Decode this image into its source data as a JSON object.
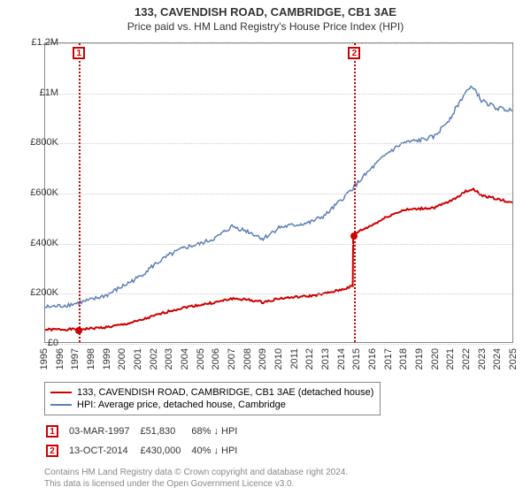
{
  "title": "133, CAVENDISH ROAD, CAMBRIDGE, CB1 3AE",
  "subtitle": "Price paid vs. HM Land Registry's House Price Index (HPI)",
  "chart": {
    "type": "line",
    "background_color": "#ffffff",
    "grid_color": "#cccccc",
    "border_color": "#888888",
    "ylim": [
      0,
      1200000
    ],
    "ytick_step": 200000,
    "yticks": [
      "£0",
      "£200K",
      "£400K",
      "£600K",
      "£800K",
      "£1M",
      "£1.2M"
    ],
    "xlim": [
      1995,
      2025
    ],
    "xticks": [
      "1995",
      "1996",
      "1997",
      "1998",
      "1999",
      "2000",
      "2001",
      "2002",
      "2003",
      "2004",
      "2005",
      "2006",
      "2007",
      "2008",
      "2009",
      "2010",
      "2011",
      "2012",
      "2013",
      "2014",
      "2015",
      "2016",
      "2017",
      "2018",
      "2019",
      "2020",
      "2021",
      "2022",
      "2023",
      "2024",
      "2025"
    ],
    "label_fontsize": 11,
    "title_fontsize": 13,
    "series": [
      {
        "name": "price_paid",
        "label": "133, CAVENDISH ROAD, CAMBRIDGE, CB1 3AE (detached house)",
        "color": "#cc0000",
        "line_width": 2,
        "data": [
          [
            1995.0,
            50000
          ],
          [
            1997.17,
            51830
          ],
          [
            1998,
            55000
          ],
          [
            1999,
            60000
          ],
          [
            2000,
            70000
          ],
          [
            2001,
            85000
          ],
          [
            2002,
            105000
          ],
          [
            2003,
            125000
          ],
          [
            2004,
            140000
          ],
          [
            2005,
            150000
          ],
          [
            2006,
            160000
          ],
          [
            2007,
            175000
          ],
          [
            2008,
            170000
          ],
          [
            2009,
            160000
          ],
          [
            2010,
            175000
          ],
          [
            2011,
            180000
          ],
          [
            2012,
            185000
          ],
          [
            2013,
            195000
          ],
          [
            2014,
            210000
          ],
          [
            2014.75,
            225000
          ],
          [
            2014.78,
            430000
          ],
          [
            2015,
            440000
          ],
          [
            2016,
            470000
          ],
          [
            2017,
            505000
          ],
          [
            2018,
            530000
          ],
          [
            2019,
            535000
          ],
          [
            2020,
            540000
          ],
          [
            2021,
            565000
          ],
          [
            2022,
            605000
          ],
          [
            2022.5,
            615000
          ],
          [
            2023,
            590000
          ],
          [
            2024,
            575000
          ],
          [
            2025,
            560000
          ]
        ]
      },
      {
        "name": "hpi",
        "label": "HPI: Average price, detached house, Cambridge",
        "color": "#5b7fb5",
        "line_width": 1.5,
        "data": [
          [
            1995.0,
            140000
          ],
          [
            1996,
            145000
          ],
          [
            1997,
            155000
          ],
          [
            1998,
            170000
          ],
          [
            1999,
            190000
          ],
          [
            2000,
            225000
          ],
          [
            2001,
            260000
          ],
          [
            2002,
            310000
          ],
          [
            2003,
            350000
          ],
          [
            2004,
            380000
          ],
          [
            2005,
            395000
          ],
          [
            2006,
            420000
          ],
          [
            2007,
            465000
          ],
          [
            2008,
            445000
          ],
          [
            2009,
            415000
          ],
          [
            2010,
            460000
          ],
          [
            2011,
            470000
          ],
          [
            2012,
            480000
          ],
          [
            2013,
            510000
          ],
          [
            2014,
            570000
          ],
          [
            2015,
            635000
          ],
          [
            2016,
            700000
          ],
          [
            2017,
            760000
          ],
          [
            2018,
            800000
          ],
          [
            2019,
            810000
          ],
          [
            2020,
            825000
          ],
          [
            2021,
            900000
          ],
          [
            2022,
            1005000
          ],
          [
            2022.5,
            1025000
          ],
          [
            2023,
            970000
          ],
          [
            2024,
            940000
          ],
          [
            2025,
            930000
          ]
        ]
      }
    ],
    "events": [
      {
        "n": "1",
        "year": 1997.17,
        "value": 51830,
        "date": "03-MAR-1997",
        "price": "£51,830",
        "diff": "68% ↓ HPI",
        "color": "#cc0000"
      },
      {
        "n": "2",
        "year": 2014.78,
        "value": 430000,
        "date": "13-OCT-2014",
        "price": "£430,000",
        "diff": "40% ↓ HPI",
        "color": "#cc0000"
      }
    ]
  },
  "legend": {
    "border_color": "#888888"
  },
  "footer": {
    "line1": "Contains HM Land Registry data © Crown copyright and database right 2024.",
    "line2": "This data is licensed under the Open Government Licence v3.0."
  }
}
